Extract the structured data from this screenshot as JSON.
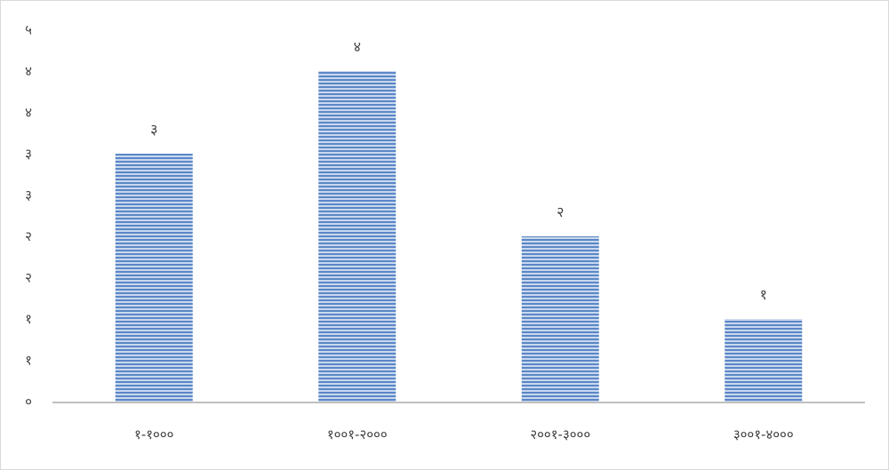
{
  "chart_data": {
    "type": "bar",
    "categories": [
      "१-१०००",
      "१००१-२०००",
      "२००१-३०००",
      "३००१-४०००"
    ],
    "values": [
      3,
      4,
      2,
      1
    ],
    "data_labels": [
      "३",
      "४",
      "२",
      "१"
    ],
    "ytick_labels": [
      "०",
      "१",
      "१",
      "२",
      "२",
      "३",
      "३",
      "४",
      "४",
      "५"
    ],
    "ylim": [
      0,
      4.5
    ],
    "grid": false,
    "legend": "none",
    "bar_color": "#5b87c6",
    "bar_stripe_color": "#c9d8ee",
    "axis_color": "#bfbfbf"
  }
}
